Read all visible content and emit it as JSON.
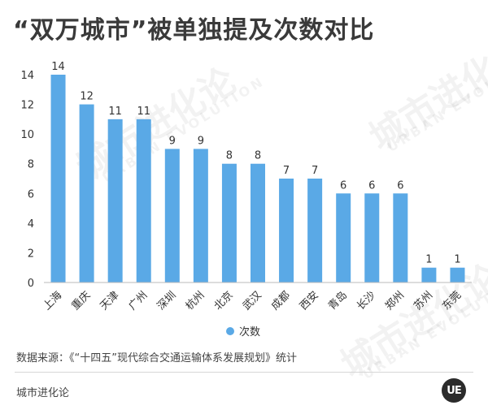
{
  "title": "“双万城市”被单独提及次数对比",
  "source": "数据来源：《“十四五”现代综合交通运输体系发展规划》统计",
  "brand": "城市进化论",
  "logo_text": "UE",
  "watermark": {
    "main": "城市进化论",
    "sub": "URBAN EVOLUTION"
  },
  "colors": {
    "bar": "#5aa9e6",
    "axis": "#bbbbbb",
    "text": "#333333"
  },
  "chart_data": {
    "type": "bar",
    "title": "“双万城市”被单独提及次数对比",
    "categories": [
      "上海",
      "重庆",
      "天津",
      "广州",
      "深圳",
      "杭州",
      "北京",
      "武汉",
      "成都",
      "西安",
      "青岛",
      "长沙",
      "郑州",
      "苏州",
      "东莞"
    ],
    "series": [
      {
        "name": "次数",
        "values": [
          14,
          12,
          11,
          11,
          9,
          9,
          8,
          8,
          7,
          7,
          6,
          6,
          6,
          1,
          1
        ]
      }
    ],
    "ylim": [
      0,
      14
    ],
    "yticks": [
      0,
      2,
      4,
      6,
      8,
      10,
      12,
      14
    ],
    "grid": false,
    "legend": "bottom"
  }
}
